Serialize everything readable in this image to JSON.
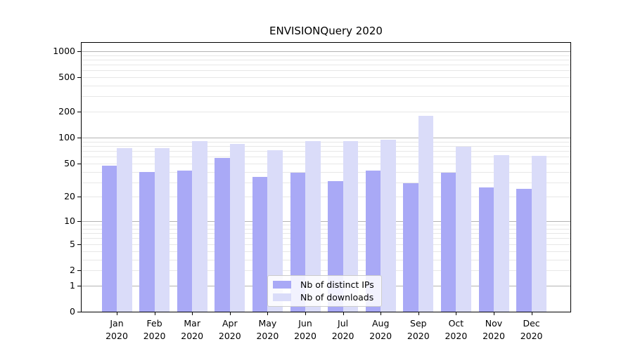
{
  "chart_data": {
    "type": "bar",
    "title": "ENVISIONQuery 2020",
    "categories": [
      "Jan",
      "Feb",
      "Mar",
      "Apr",
      "May",
      "Jun",
      "Jul",
      "Aug",
      "Sep",
      "Oct",
      "Nov",
      "Dec"
    ],
    "x_tick_second_line": "2020",
    "series": [
      {
        "name": "Nb of distinct IPs",
        "color": "#a9a9f6",
        "values": [
          47,
          40,
          41,
          58,
          35,
          39,
          31,
          41,
          29,
          39,
          26,
          25
        ]
      },
      {
        "name": "Nb of downloads",
        "color": "#dadcf9",
        "values": [
          75,
          75,
          91,
          85,
          72,
          92,
          91,
          94,
          179,
          78,
          62,
          61
        ]
      }
    ],
    "y_scale": "log1p",
    "y_ticks": [
      0,
      1,
      2,
      5,
      10,
      20,
      50,
      100,
      200,
      500,
      1000
    ],
    "y_major_gridlines": [
      1,
      10,
      100,
      1000
    ],
    "y_minor_gridlines": [
      2,
      3,
      4,
      5,
      6,
      7,
      8,
      9,
      20,
      30,
      40,
      50,
      60,
      70,
      80,
      90,
      200,
      300,
      400,
      500,
      600,
      700,
      800,
      900
    ],
    "ylim": [
      0,
      1280
    ],
    "grid": true,
    "legend": {
      "position": "lower-center-inside",
      "entries": [
        "Nb of distinct IPs",
        "Nb of downloads"
      ]
    },
    "colors": {
      "bar_distinct_ips": "#a9a9f6",
      "bar_downloads": "#dadcf9",
      "major_grid": "#b3b3b3",
      "minor_grid": "#e7e7e7",
      "axis": "#000000",
      "legend_border": "#cccccc"
    }
  }
}
